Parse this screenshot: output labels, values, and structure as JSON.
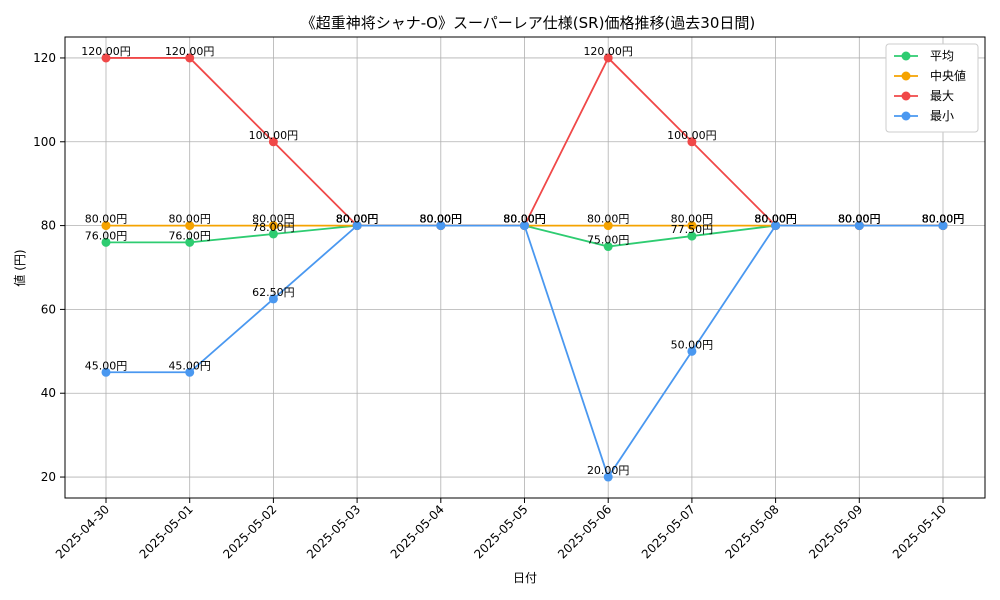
{
  "chart_data": {
    "type": "line",
    "title": "《超重神将シャナ-O》スーパーレア仕様(SR)価格推移(過去30日間)",
    "xlabel": "日付",
    "ylabel": "値 (円)",
    "categories": [
      "2025-04-30",
      "2025-05-01",
      "2025-05-02",
      "2025-05-03",
      "2025-05-04",
      "2025-05-05",
      "2025-05-06",
      "2025-05-07",
      "2025-05-08",
      "2025-05-09",
      "2025-05-10"
    ],
    "ylim": [
      15,
      125
    ],
    "yticks": [
      20,
      40,
      60,
      80,
      100,
      120
    ],
    "grid": true,
    "legend_position": "top-right",
    "label_suffix": "円",
    "series": [
      {
        "name": "平均",
        "color": "#2ecc71",
        "values": [
          76,
          76,
          78,
          80,
          80,
          80,
          75,
          77.5,
          80,
          80,
          80
        ]
      },
      {
        "name": "中央値",
        "color": "#f5a300",
        "values": [
          80,
          80,
          80,
          80,
          80,
          80,
          80,
          80,
          80,
          80,
          80
        ]
      },
      {
        "name": "最大",
        "color": "#f04848",
        "values": [
          120,
          120,
          100,
          80,
          80,
          80,
          120,
          100,
          80,
          80,
          80
        ]
      },
      {
        "name": "最小",
        "color": "#4a98f0",
        "values": [
          45,
          45,
          62.5,
          80,
          80,
          80,
          20,
          50,
          80,
          80,
          80
        ]
      }
    ]
  }
}
